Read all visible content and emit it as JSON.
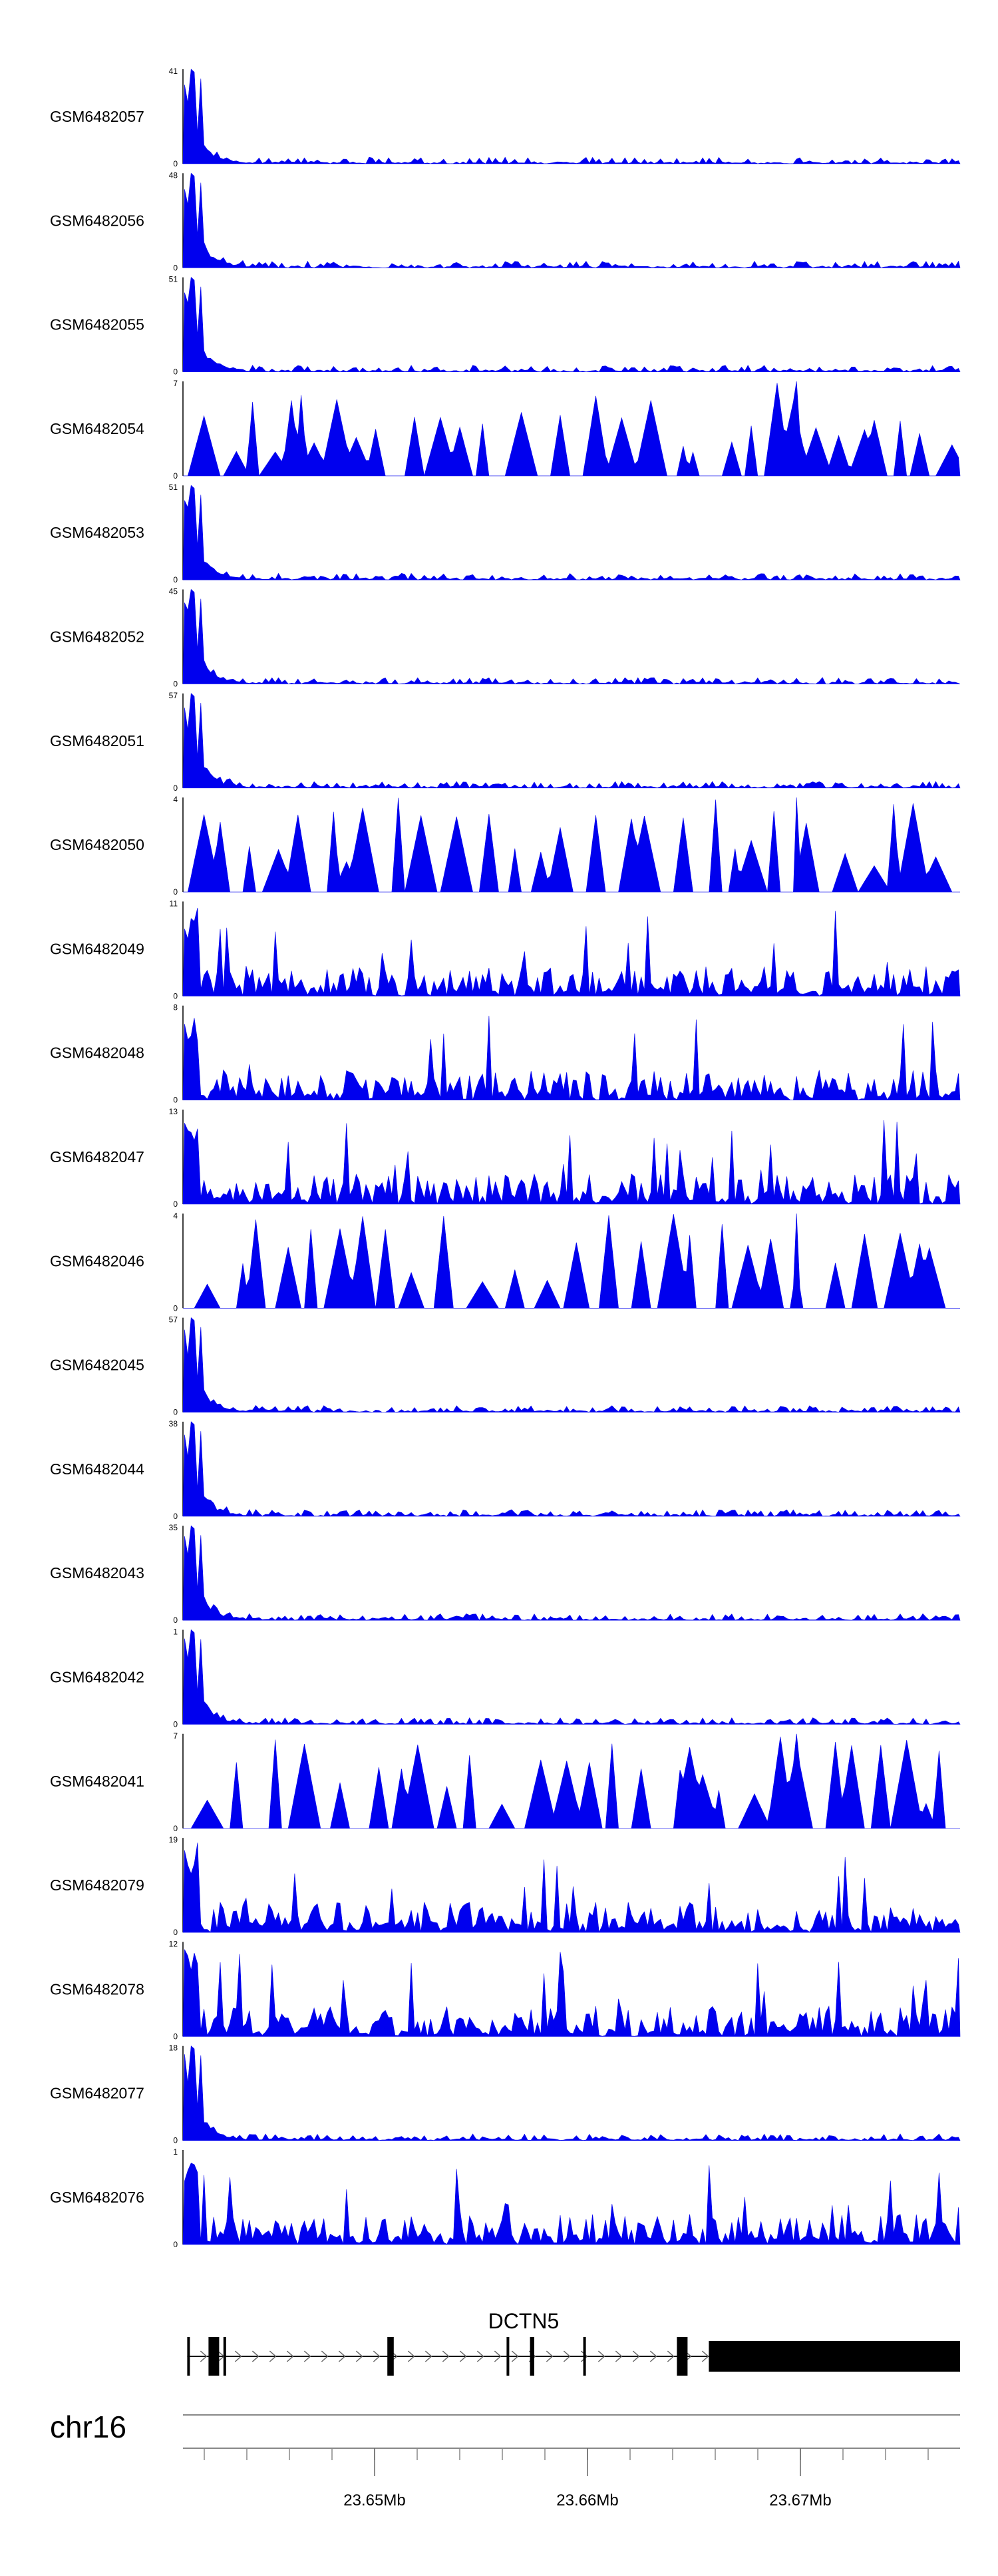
{
  "chart_data": {
    "type": "area",
    "chromosome": "chr16",
    "x_range": [
      23641000,
      23677500
    ],
    "colors": {
      "signal": "#0000ee",
      "axis": "#000000",
      "gene": "#000000",
      "ruler": "#888888"
    },
    "tracks": [
      {
        "name": "GSM6482057",
        "ymax": 41,
        "ymin": 0,
        "profile": "peak"
      },
      {
        "name": "GSM6482056",
        "ymax": 48,
        "ymin": 0,
        "profile": "peak"
      },
      {
        "name": "GSM6482055",
        "ymax": 51,
        "ymin": 0,
        "profile": "peak"
      },
      {
        "name": "GSM6482054",
        "ymax": 7,
        "ymin": 0,
        "profile": "sparse"
      },
      {
        "name": "GSM6482053",
        "ymax": 51,
        "ymin": 0,
        "profile": "peak"
      },
      {
        "name": "GSM6482052",
        "ymax": 45,
        "ymin": 0,
        "profile": "peak"
      },
      {
        "name": "GSM6482051",
        "ymax": 57,
        "ymin": 0,
        "profile": "peak"
      },
      {
        "name": "GSM6482050",
        "ymax": 4,
        "ymin": 0,
        "profile": "sparse"
      },
      {
        "name": "GSM6482049",
        "ymax": 11,
        "ymin": 0,
        "profile": "noisy"
      },
      {
        "name": "GSM6482048",
        "ymax": 8,
        "ymin": 0,
        "profile": "noisy"
      },
      {
        "name": "GSM6482047",
        "ymax": 13,
        "ymin": 0,
        "profile": "noisy"
      },
      {
        "name": "GSM6482046",
        "ymax": 4,
        "ymin": 0,
        "profile": "sparse"
      },
      {
        "name": "GSM6482045",
        "ymax": 57,
        "ymin": 0,
        "profile": "peak"
      },
      {
        "name": "GSM6482044",
        "ymax": 38,
        "ymin": 0,
        "profile": "peak"
      },
      {
        "name": "GSM6482043",
        "ymax": 35,
        "ymin": 0,
        "profile": "peak"
      },
      {
        "name": "GSM6482042",
        "ymax": 1,
        "ymin": 0,
        "profile": "peak"
      },
      {
        "name": "GSM6482041",
        "ymax": 7,
        "ymin": 0,
        "profile": "sparse"
      },
      {
        "name": "GSM6482079",
        "ymax": 19,
        "ymin": 0,
        "profile": "noisy"
      },
      {
        "name": "GSM6482078",
        "ymax": 12,
        "ymin": 0,
        "profile": "noisy"
      },
      {
        "name": "GSM6482077",
        "ymax": 18,
        "ymin": 0,
        "profile": "peak"
      },
      {
        "name": "GSM6482076",
        "ymax": 1,
        "ymin": 0,
        "profile": "noisy"
      }
    ],
    "gene": {
      "name": "DCTN5",
      "start": 23641200,
      "end": 23677500,
      "strand": "+",
      "exons": [
        [
          23641200,
          23641300
        ],
        [
          23642200,
          23642700
        ],
        [
          23642900,
          23643000
        ],
        [
          23650600,
          23650900
        ],
        [
          23656200,
          23656300
        ],
        [
          23657300,
          23657500
        ],
        [
          23659800,
          23659900
        ],
        [
          23664200,
          23664700
        ],
        [
          23665700,
          23677500
        ]
      ]
    },
    "axis": {
      "tick_labels": [
        {
          "value": 23650000,
          "label": "23.65Mb"
        },
        {
          "value": 23660000,
          "label": "23.66Mb"
        },
        {
          "value": 23670000,
          "label": "23.67Mb"
        }
      ],
      "minor_tick_step": 2000,
      "minor_tick_start": 23642000
    }
  }
}
